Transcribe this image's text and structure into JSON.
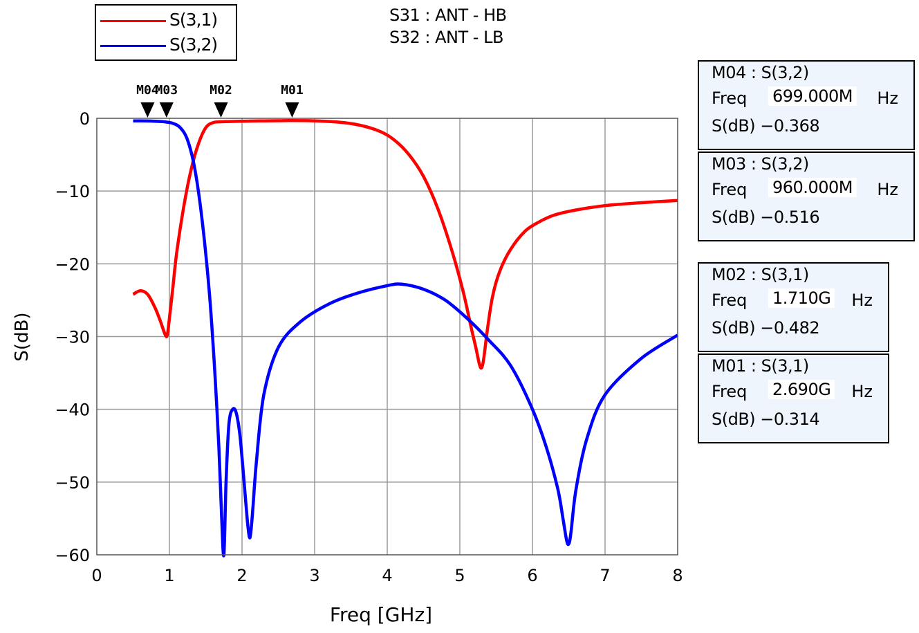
{
  "chart_data": {
    "type": "line",
    "xlabel": "Freq [GHz]",
    "ylabel": "S(dB)",
    "xlim": [
      0,
      8
    ],
    "ylim": [
      -60,
      0
    ],
    "xticks": [
      "0",
      "1",
      "2",
      "3",
      "4",
      "5",
      "6",
      "7",
      "8"
    ],
    "yticks": [
      "0",
      "−10",
      "−20",
      "−30",
      "−40",
      "−50",
      "−60"
    ],
    "grid": true,
    "legend_position": "top-left",
    "annotations": [
      "S31 : ANT - HB",
      "S32 : ANT - LB"
    ],
    "series": [
      {
        "name": "S(3,1)",
        "color": "#ff0000",
        "x": [
          0.5,
          0.6,
          0.7,
          0.8,
          0.88,
          0.94,
          0.97,
          1.0,
          1.05,
          1.1,
          1.2,
          1.3,
          1.4,
          1.5,
          1.6,
          1.71,
          2.0,
          2.5,
          2.69,
          3.0,
          3.3,
          3.6,
          3.9,
          4.1,
          4.3,
          4.5,
          4.7,
          4.9,
          5.05,
          5.15,
          5.22,
          5.27,
          5.3,
          5.33,
          5.38,
          5.45,
          5.55,
          5.7,
          5.9,
          6.1,
          6.3,
          6.6,
          7.0,
          7.5,
          8.0
        ],
        "y": [
          -24.2,
          -23.7,
          -24.2,
          -26.0,
          -28.0,
          -29.7,
          -29.8,
          -27.5,
          -23.0,
          -18.5,
          -12.0,
          -7.0,
          -3.5,
          -1.3,
          -0.6,
          -0.48,
          -0.4,
          -0.33,
          -0.31,
          -0.35,
          -0.5,
          -0.9,
          -1.8,
          -3.0,
          -5.0,
          -8.0,
          -12.5,
          -18.5,
          -24.0,
          -28.5,
          -31.5,
          -33.8,
          -34.3,
          -33.0,
          -29.0,
          -24.5,
          -21.0,
          -18.0,
          -15.5,
          -14.2,
          -13.3,
          -12.6,
          -12.0,
          -11.6,
          -11.3
        ]
      },
      {
        "name": "S(3,2)",
        "color": "#0000ff",
        "x": [
          0.5,
          0.6,
          0.699,
          0.8,
          0.9,
          0.96,
          1.05,
          1.15,
          1.25,
          1.35,
          1.45,
          1.55,
          1.62,
          1.68,
          1.72,
          1.75,
          1.78,
          1.82,
          1.87,
          1.92,
          1.97,
          2.02,
          2.07,
          2.1,
          2.12,
          2.15,
          2.2,
          2.3,
          2.5,
          2.8,
          3.2,
          3.6,
          4.0,
          4.2,
          4.5,
          4.8,
          5.1,
          5.4,
          5.7,
          6.0,
          6.2,
          6.35,
          6.42,
          6.47,
          6.5,
          6.53,
          6.6,
          6.75,
          7.0,
          7.5,
          8.0
        ],
        "y": [
          -0.35,
          -0.36,
          -0.37,
          -0.4,
          -0.45,
          -0.52,
          -0.7,
          -1.3,
          -3.0,
          -7.0,
          -14.0,
          -24.0,
          -34.0,
          -45.0,
          -55.0,
          -60.0,
          -50.0,
          -42.0,
          -40.0,
          -40.5,
          -43.5,
          -49.0,
          -55.0,
          -57.5,
          -57.0,
          -53.5,
          -47.0,
          -38.0,
          -31.5,
          -28.0,
          -25.5,
          -24.0,
          -23.0,
          -22.8,
          -23.5,
          -25.0,
          -27.5,
          -30.5,
          -34.0,
          -40.0,
          -45.5,
          -51.0,
          -55.0,
          -58.0,
          -58.5,
          -57.0,
          -51.0,
          -44.0,
          -38.0,
          -33.0,
          -29.8
        ]
      }
    ],
    "markers": [
      {
        "label": "M04",
        "x": 0.699
      },
      {
        "label": "M03",
        "x": 0.96
      },
      {
        "label": "M02",
        "x": 1.71
      },
      {
        "label": "M01",
        "x": 2.69
      }
    ]
  },
  "legend": [
    {
      "label": "S(3,1)",
      "color": "#ff0000"
    },
    {
      "label": "S(3,2)",
      "color": "#0000ff"
    }
  ],
  "subtitle_lines": [
    "S31 : ANT - HB",
    "S32 : ANT - LB"
  ],
  "marker_boxes": [
    {
      "title": "M04 : S(3,2)",
      "freq_label": "Freq",
      "freq_value": "699.000M",
      "freq_unit": "Hz",
      "db_text": "S(dB) −0.368"
    },
    {
      "title": "M03 : S(3,2)",
      "freq_label": "Freq",
      "freq_value": "960.000M",
      "freq_unit": "Hz",
      "db_text": "S(dB) −0.516"
    },
    {
      "title": "M02 : S(3,1)",
      "freq_label": "Freq",
      "freq_value": "1.710G",
      "freq_unit": "Hz",
      "db_text": "S(dB) −0.482"
    },
    {
      "title": "M01 : S(3,1)",
      "freq_label": "Freq",
      "freq_value": "2.690G",
      "freq_unit": "Hz",
      "db_text": "S(dB) −0.314"
    }
  ]
}
